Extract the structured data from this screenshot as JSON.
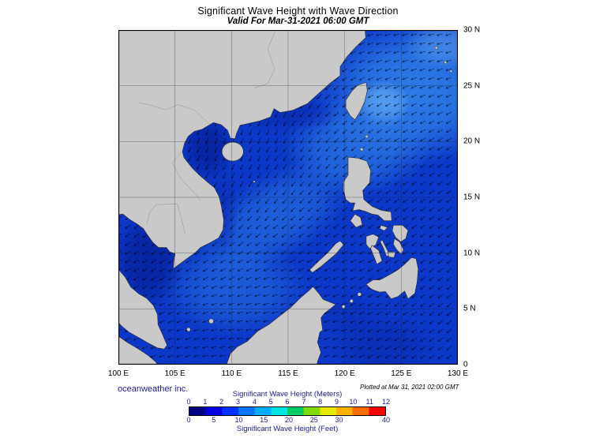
{
  "header": {
    "title": "Significant Wave Height with Wave Direction",
    "subtitle": "Valid For Mar-31-2021 06:00 GMT"
  },
  "footer": {
    "credit": "oceanweather inc.",
    "plotted": "Plotted at Mar 31, 2021 02:00 GMT"
  },
  "axes": {
    "x_ticks": [
      "100 E",
      "105 E",
      "110 E",
      "115 E",
      "120 E",
      "125 E",
      "130 E"
    ],
    "y_ticks": [
      "30 N",
      "25 N",
      "20 N",
      "15 N",
      "10 N",
      "5 N",
      "0"
    ]
  },
  "map": {
    "lon_min": 100,
    "lon_max": 130,
    "lat_min": 0,
    "lat_max": 30,
    "grid_step_deg": 5,
    "colors": {
      "ocean_base": "#0b38c8",
      "ocean_light": "#2f7fe8",
      "ocean_lighter": "#62a8f2",
      "ocean_middark": "#0a2bb0",
      "ocean_dark": "#06209a",
      "land": "#c9c9c9",
      "coast_outline": "#2a2a2a",
      "inland_border": "#8f8f8f",
      "grid": "#1a1a1a",
      "arrow": "#000000",
      "frame": "#000000",
      "text_navy": "#1f1f8f"
    }
  },
  "colorbar": {
    "label_meters": "Significant Wave Height (Meters)",
    "label_feet": "Significant Wave Height (Feet)",
    "meter_ticks": [
      0,
      1,
      2,
      3,
      4,
      5,
      6,
      7,
      8,
      9,
      10,
      11,
      12
    ],
    "feet_ticks": [
      0,
      5,
      10,
      15,
      20,
      25,
      30,
      40
    ],
    "meters_range": [
      0,
      12
    ],
    "colors": [
      "#000082",
      "#0000e0",
      "#0033ff",
      "#0073ff",
      "#00adff",
      "#00e4e4",
      "#00cc66",
      "#7fdc00",
      "#e8e800",
      "#ffb000",
      "#ff6a00",
      "#f80000"
    ],
    "text_color": "#1f1f8f"
  }
}
